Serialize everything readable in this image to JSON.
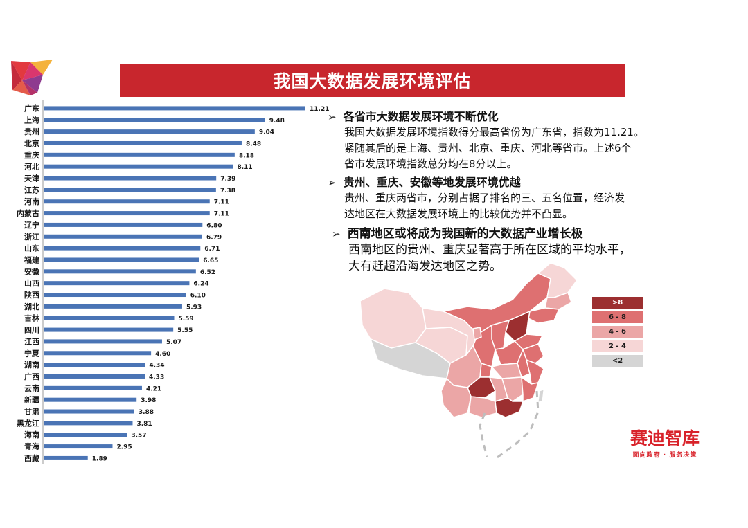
{
  "header": {
    "title": "我国大数据发展环境评估"
  },
  "chart_data": {
    "type": "bar",
    "orientation": "horizontal",
    "categories": [
      "广东",
      "上海",
      "贵州",
      "北京",
      "重庆",
      "河北",
      "天津",
      "江苏",
      "河南",
      "内蒙古",
      "辽宁",
      "浙江",
      "山东",
      "福建",
      "安徽",
      "山西",
      "陕西",
      "湖北",
      "吉林",
      "四川",
      "江西",
      "宁夏",
      "湖南",
      "广西",
      "云南",
      "新疆",
      "甘肃",
      "黑龙江",
      "海南",
      "青海",
      "西藏"
    ],
    "values": [
      11.21,
      9.48,
      9.04,
      8.48,
      8.18,
      8.11,
      7.39,
      7.38,
      7.11,
      7.11,
      6.8,
      6.79,
      6.71,
      6.65,
      6.52,
      6.24,
      6.1,
      5.93,
      5.59,
      5.55,
      5.07,
      4.6,
      4.34,
      4.33,
      4.21,
      3.98,
      3.88,
      3.81,
      3.57,
      2.95,
      1.89
    ],
    "value_labels": [
      "11.21",
      "9.48",
      "9.04",
      "8.48",
      "8.18",
      "8.11",
      "7.39",
      "7.38",
      "7.11",
      "7.11",
      "6.80",
      "6.79",
      "6.71",
      "6.65",
      "6.52",
      "6.24",
      "6.10",
      "5.93",
      "5.59",
      "5.55",
      "5.07",
      "4.60",
      "4.34",
      "4.33",
      "4.21",
      "3.98",
      "3.88",
      "3.81",
      "3.57",
      "2.95",
      "1.89"
    ],
    "bar_color": "#4a74b5",
    "xlim": [
      0,
      11.21
    ]
  },
  "bullets": [
    {
      "arrow": "➢",
      "heading": "各省市大数据发展环境不断优化",
      "lines": [
        "我国大数据发展环境指数得分最高省份为广东省，指数为11.21。",
        "紧随其后的是上海、贵州、北京、重庆、河北等省市。上述6个",
        "省市发展环境指数总分均在8分以上。"
      ]
    },
    {
      "arrow": "➢",
      "heading": "贵州、重庆、安徽等地发展环境优越",
      "lines": [
        "贵州、重庆两省市，分别占据了排名的三、五名位置，经济发",
        "达地区在大数据发展环境上的比较优势并不凸显。"
      ]
    },
    {
      "arrow": "➢",
      "heading": "西南地区或将成为我国新的大数据产业增长极",
      "lines": [
        "西南地区的贵州、重庆显著高于所在区域的平均水平，",
        "大有赶超沿海发达地区之势。"
      ]
    }
  ],
  "legend": [
    {
      "label": ">8",
      "color": "#9c2f30",
      "text_color": "#ffffff"
    },
    {
      "label": "6 - 8",
      "color": "#de7071",
      "text_color": "#1a1a1a"
    },
    {
      "label": "4 - 6",
      "color": "#eba6a6",
      "text_color": "#1a1a1a"
    },
    {
      "label": "2 - 4",
      "color": "#f6d6d6",
      "text_color": "#1a1a1a"
    },
    {
      "label": "<2",
      "color": "#d5d5d5",
      "text_color": "#1a1a1a"
    }
  ],
  "brand": {
    "name": "赛迪智库",
    "slogan": "面向政府 · 服务决策"
  }
}
